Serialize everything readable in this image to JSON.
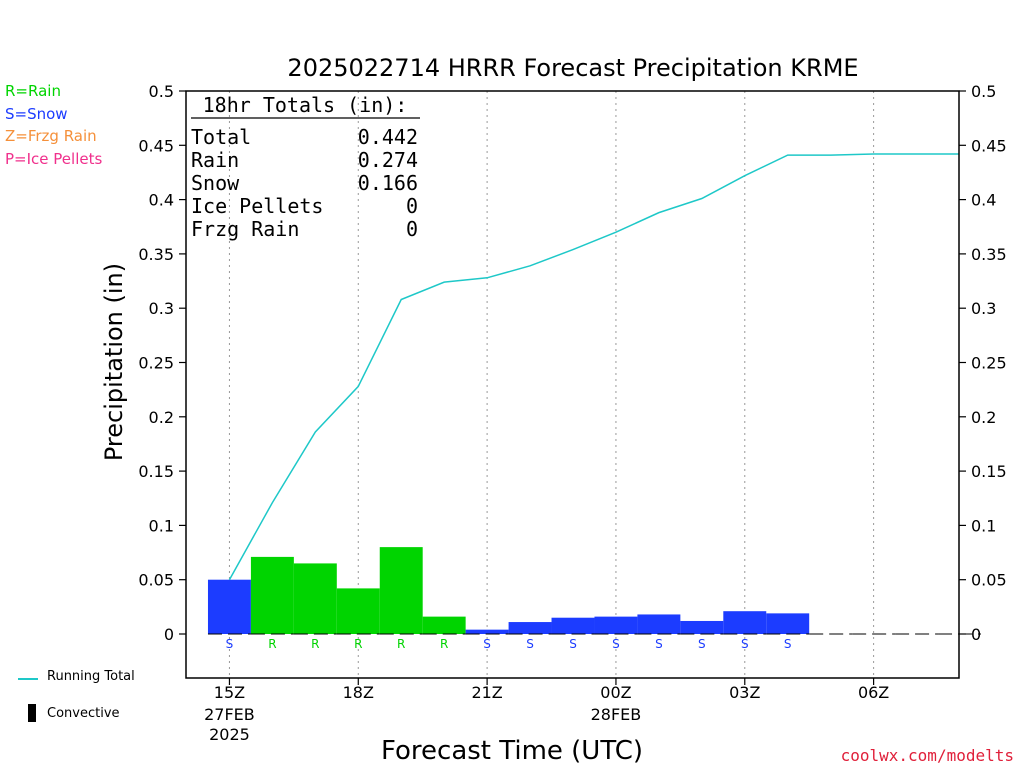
{
  "colors": {
    "rain": "#00d400",
    "snow": "#1c3cff",
    "frzg_rain": "#f5903a",
    "ice_pellets": "#f0308c",
    "running_total": "#1ec8c8",
    "footer": "#e0203a"
  },
  "legend": {
    "rain": "R=Rain",
    "snow": "S=Snow",
    "frzg_rain": "Z=Frzg Rain",
    "ice_pellets": "P=Ice Pellets",
    "running_total": "Running Total",
    "convective": "Convective"
  },
  "totals_box": {
    "heading": "18hr Totals (in):",
    "rows": [
      {
        "label": "Total",
        "value": "0.442"
      },
      {
        "label": "Rain",
        "value": "0.274"
      },
      {
        "label": "Snow",
        "value": "0.166"
      },
      {
        "label": "Ice Pellets",
        "value": "0"
      },
      {
        "label": "Frzg Rain",
        "value": "0"
      }
    ]
  },
  "footer": "coolwx.com/modelts",
  "chart_data": {
    "type": "bar",
    "title": "2025022714 HRRR Forecast Precipitation KRME",
    "xlabel": "Forecast Time (UTC)",
    "ylabel": "Precipitation (in)",
    "ylim": [
      0,
      0.5
    ],
    "y_ticks": [
      "0",
      "0.05",
      "0.1",
      "0.15",
      "0.2",
      "0.25",
      "0.3",
      "0.35",
      "0.4",
      "0.45",
      "0.5"
    ],
    "x_ticks": [
      {
        "label": "15Z",
        "sub": "27FEB",
        "sub2": "2025",
        "hour": 0
      },
      {
        "label": "18Z",
        "sub": "",
        "sub2": "",
        "hour": 3
      },
      {
        "label": "21Z",
        "sub": "",
        "sub2": "",
        "hour": 6
      },
      {
        "label": "00Z",
        "sub": "28FEB",
        "sub2": "",
        "hour": 9
      },
      {
        "label": "03Z",
        "sub": "",
        "sub2": "",
        "hour": 12
      },
      {
        "label": "06Z",
        "sub": "",
        "sub2": "",
        "hour": 15
      }
    ],
    "x_range_hours": [
      -1,
      17
    ],
    "grid": "vertical dotted",
    "hourly": [
      {
        "hour": 0,
        "precip": 0.05,
        "type": "S",
        "total": 0.05
      },
      {
        "hour": 1,
        "precip": 0.071,
        "type": "R",
        "total": 0.121
      },
      {
        "hour": 2,
        "precip": 0.065,
        "type": "R",
        "total": 0.186
      },
      {
        "hour": 3,
        "precip": 0.042,
        "type": "R",
        "total": 0.228
      },
      {
        "hour": 4,
        "precip": 0.08,
        "type": "R",
        "total": 0.308
      },
      {
        "hour": 5,
        "precip": 0.016,
        "type": "R",
        "total": 0.324
      },
      {
        "hour": 6,
        "precip": 0.004,
        "type": "S",
        "total": 0.328
      },
      {
        "hour": 7,
        "precip": 0.011,
        "type": "S",
        "total": 0.339
      },
      {
        "hour": 8,
        "precip": 0.015,
        "type": "S",
        "total": 0.354
      },
      {
        "hour": 9,
        "precip": 0.016,
        "type": "S",
        "total": 0.37
      },
      {
        "hour": 10,
        "precip": 0.018,
        "type": "S",
        "total": 0.388
      },
      {
        "hour": 11,
        "precip": 0.012,
        "type": "S",
        "total": 0.401
      },
      {
        "hour": 12,
        "precip": 0.021,
        "type": "S",
        "total": 0.422
      },
      {
        "hour": 13,
        "precip": 0.019,
        "type": "S",
        "total": 0.441
      },
      {
        "hour": 14,
        "precip": 0,
        "type": "",
        "total": 0.441
      },
      {
        "hour": 15,
        "precip": 0,
        "type": "",
        "total": 0.442
      },
      {
        "hour": 16,
        "precip": 0,
        "type": "",
        "total": 0.442
      },
      {
        "hour": 17,
        "precip": 0,
        "type": "",
        "total": 0.442
      }
    ]
  }
}
